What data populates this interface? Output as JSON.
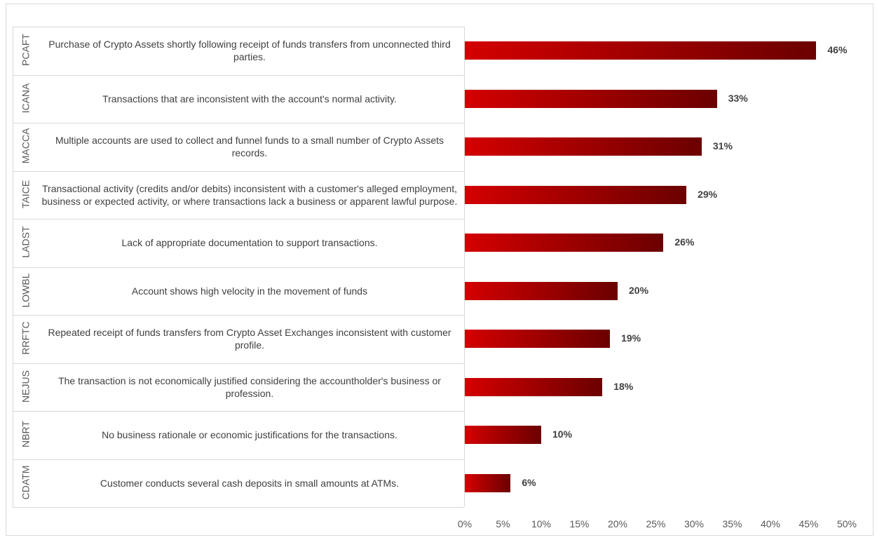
{
  "chart_data": {
    "type": "bar",
    "orientation": "horizontal",
    "codes": [
      "PCAFT",
      "ICANA",
      "MACCA",
      "TAICE",
      "LADST",
      "LOWBL",
      "RRFTC",
      "NEJUS",
      "NBRT",
      "CDATM"
    ],
    "categories": [
      "Purchase of Crypto Assets shortly following receipt of funds transfers from unconnected third parties.",
      "Transactions that are inconsistent with the account's normal activity.",
      "Multiple accounts are used to collect and funnel funds to a small number of Crypto Assets records.",
      "Transactional activity (credits and/or debits) inconsistent with a customer's alleged employment, business or expected activity, or where transactions lack a business or apparent lawful purpose.",
      "Lack of appropriate documentation to support transactions.",
      "Account shows high velocity in the movement of funds",
      "Repeated receipt of funds transfers from Crypto Asset Exchanges inconsistent with customer profile.",
      "The transaction is not economically justified considering the accountholder's business or profession.",
      "No business rationale or economic justifications for the transactions.",
      "Customer conducts several cash deposits in small amounts at ATMs."
    ],
    "values": [
      46,
      33,
      31,
      29,
      26,
      20,
      19,
      18,
      10,
      6
    ],
    "value_labels": [
      "46%",
      "33%",
      "31%",
      "29%",
      "26%",
      "20%",
      "19%",
      "18%",
      "10%",
      "6%"
    ],
    "colors": [
      "#d40000",
      "#6b0000"
    ],
    "xlim": [
      0,
      50
    ],
    "xticks": [
      {
        "value": 0,
        "label": "0%"
      },
      {
        "value": 5,
        "label": "5%"
      },
      {
        "value": 10,
        "label": "10%"
      },
      {
        "value": 15,
        "label": "15%"
      },
      {
        "value": 20,
        "label": "20%"
      },
      {
        "value": 25,
        "label": "25%"
      },
      {
        "value": 30,
        "label": "30%"
      },
      {
        "value": 35,
        "label": "35%"
      },
      {
        "value": 40,
        "label": "40%"
      },
      {
        "value": 45,
        "label": "45%"
      },
      {
        "value": 50,
        "label": "50%"
      }
    ],
    "grid": false
  }
}
